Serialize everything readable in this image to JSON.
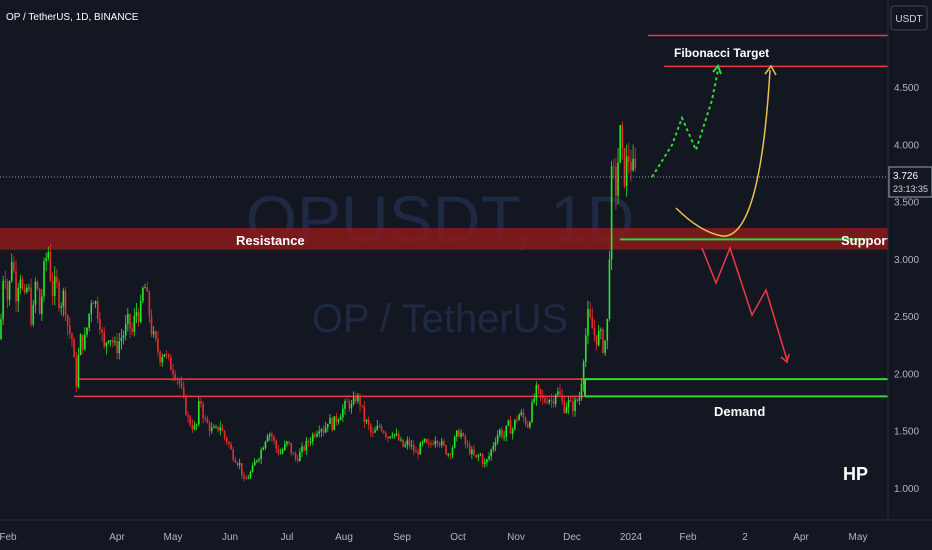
{
  "header": {
    "symbol_info": "OP / TetherUS, 1D, BINANCE"
  },
  "currency_button": {
    "label": "USDT"
  },
  "watermark": {
    "ticker": "OPUSDT, 1D",
    "pair": "OP / TetherUS"
  },
  "price_badge": {
    "price": "3.726",
    "countdown": "23:13:35"
  },
  "annotations": {
    "resistance": "Resistance",
    "support": "Support",
    "demand": "Demand",
    "fibonacci": "Fibonacci Target",
    "author": "HP"
  },
  "colors": {
    "background": "#131722",
    "up": "#26a69a",
    "down": "#ef5350",
    "bull_candle": "#27e927",
    "bear_candle": "#e82d2d",
    "red_line": "#f23645",
    "green_line": "#33d933",
    "zone": "#8b1a1a",
    "projection_green": "#33d933",
    "projection_red": "#f23645",
    "curve": "#e8c34a",
    "axis_text": "#b2b5be"
  },
  "chart_data": {
    "type": "candlestick",
    "title": "OP / TetherUS, 1D, BINANCE",
    "x_ticks": [
      "Feb",
      "Apr",
      "May",
      "Jun",
      "Jul",
      "Aug",
      "Sep",
      "Oct",
      "Nov",
      "Dec",
      "2024",
      "Feb",
      "2",
      "Apr",
      "May"
    ],
    "y_ticks": [
      "4.500",
      "4.000",
      "3.500",
      "3.000",
      "2.500",
      "2.000",
      "1.500",
      "1.000"
    ],
    "y_tick_values": [
      4.5,
      4.0,
      3.5,
      3.0,
      2.5,
      2.0,
      1.5,
      1.0
    ],
    "ylim": [
      0.5,
      5.2
    ],
    "last_price": 3.726,
    "price_path": [
      [
        0,
        2.3
      ],
      [
        4,
        3.0
      ],
      [
        8,
        2.6
      ],
      [
        12,
        3.05
      ],
      [
        16,
        2.7
      ],
      [
        20,
        2.9
      ],
      [
        24,
        2.6
      ],
      [
        28,
        2.8
      ],
      [
        32,
        2.4
      ],
      [
        36,
        2.85
      ],
      [
        40,
        2.5
      ],
      [
        44,
        2.9
      ],
      [
        48,
        3.1
      ],
      [
        52,
        2.7
      ],
      [
        56,
        2.8
      ],
      [
        60,
        2.6
      ],
      [
        64,
        2.7
      ],
      [
        68,
        2.4
      ],
      [
        72,
        2.3
      ],
      [
        76,
        1.9
      ],
      [
        80,
        2.3
      ],
      [
        84,
        2.25
      ],
      [
        88,
        2.45
      ],
      [
        92,
        2.7
      ],
      [
        96,
        2.6
      ],
      [
        100,
        2.45
      ],
      [
        104,
        2.2
      ],
      [
        108,
        2.35
      ],
      [
        112,
        2.3
      ],
      [
        116,
        2.2
      ],
      [
        120,
        2.3
      ],
      [
        124,
        2.35
      ],
      [
        128,
        2.45
      ],
      [
        132,
        2.35
      ],
      [
        136,
        2.55
      ],
      [
        140,
        2.5
      ],
      [
        144,
        2.8
      ],
      [
        148,
        2.6
      ],
      [
        152,
        2.35
      ],
      [
        156,
        2.25
      ],
      [
        160,
        2.15
      ],
      [
        164,
        2.2
      ],
      [
        168,
        2.1
      ],
      [
        172,
        2.05
      ],
      [
        176,
        2.0
      ],
      [
        180,
        1.9
      ],
      [
        184,
        1.75
      ],
      [
        188,
        1.6
      ],
      [
        192,
        1.55
      ],
      [
        196,
        1.5
      ],
      [
        200,
        1.8
      ],
      [
        204,
        1.6
      ],
      [
        208,
        1.55
      ],
      [
        212,
        1.5
      ],
      [
        216,
        1.5
      ],
      [
        220,
        1.55
      ],
      [
        224,
        1.45
      ],
      [
        228,
        1.4
      ],
      [
        232,
        1.3
      ],
      [
        236,
        1.25
      ],
      [
        240,
        1.2
      ],
      [
        244,
        1.05
      ],
      [
        248,
        1.1
      ],
      [
        252,
        1.15
      ],
      [
        256,
        1.25
      ],
      [
        260,
        1.3
      ],
      [
        264,
        1.4
      ],
      [
        268,
        1.5
      ],
      [
        272,
        1.45
      ],
      [
        276,
        1.35
      ],
      [
        280,
        1.3
      ],
      [
        284,
        1.35
      ],
      [
        288,
        1.4
      ],
      [
        292,
        1.3
      ],
      [
        296,
        1.25
      ],
      [
        300,
        1.3
      ],
      [
        304,
        1.35
      ],
      [
        308,
        1.4
      ],
      [
        312,
        1.45
      ],
      [
        316,
        1.5
      ],
      [
        320,
        1.55
      ],
      [
        324,
        1.5
      ],
      [
        328,
        1.6
      ],
      [
        332,
        1.55
      ],
      [
        336,
        1.6
      ],
      [
        340,
        1.65
      ],
      [
        344,
        1.7
      ],
      [
        348,
        1.75
      ],
      [
        352,
        1.7
      ],
      [
        356,
        1.8
      ],
      [
        360,
        1.75
      ],
      [
        364,
        1.6
      ],
      [
        368,
        1.55
      ],
      [
        372,
        1.45
      ],
      [
        376,
        1.5
      ],
      [
        380,
        1.55
      ],
      [
        384,
        1.5
      ],
      [
        388,
        1.45
      ],
      [
        392,
        1.5
      ],
      [
        396,
        1.45
      ],
      [
        400,
        1.4
      ],
      [
        404,
        1.35
      ],
      [
        408,
        1.4
      ],
      [
        412,
        1.35
      ],
      [
        416,
        1.3
      ],
      [
        420,
        1.35
      ],
      [
        424,
        1.4
      ],
      [
        428,
        1.35
      ],
      [
        432,
        1.4
      ],
      [
        436,
        1.45
      ],
      [
        440,
        1.4
      ],
      [
        444,
        1.35
      ],
      [
        448,
        1.3
      ],
      [
        452,
        1.35
      ],
      [
        456,
        1.45
      ],
      [
        460,
        1.5
      ],
      [
        464,
        1.4
      ],
      [
        468,
        1.35
      ],
      [
        472,
        1.3
      ],
      [
        476,
        1.25
      ],
      [
        480,
        1.3
      ],
      [
        484,
        1.2
      ],
      [
        488,
        1.25
      ],
      [
        492,
        1.35
      ],
      [
        496,
        1.45
      ],
      [
        500,
        1.5
      ],
      [
        504,
        1.45
      ],
      [
        508,
        1.55
      ],
      [
        512,
        1.5
      ],
      [
        516,
        1.6
      ],
      [
        520,
        1.65
      ],
      [
        524,
        1.6
      ],
      [
        528,
        1.55
      ],
      [
        532,
        1.7
      ],
      [
        536,
        1.85
      ],
      [
        540,
        1.8
      ],
      [
        544,
        1.75
      ],
      [
        548,
        1.8
      ],
      [
        552,
        1.75
      ],
      [
        556,
        1.85
      ],
      [
        560,
        1.8
      ],
      [
        564,
        1.7
      ],
      [
        568,
        1.75
      ],
      [
        572,
        1.7
      ],
      [
        576,
        1.75
      ],
      [
        580,
        1.8
      ],
      [
        584,
        2.2
      ],
      [
        588,
        2.5
      ],
      [
        592,
        2.4
      ],
      [
        596,
        2.3
      ],
      [
        600,
        2.35
      ],
      [
        604,
        2.2
      ],
      [
        608,
        2.5
      ],
      [
        610,
        3.3
      ],
      [
        612,
        3.8
      ],
      [
        616,
        3.6
      ],
      [
        620,
        4.1
      ],
      [
        624,
        3.7
      ],
      [
        628,
        3.9
      ],
      [
        632,
        3.8
      ],
      [
        636,
        3.72
      ]
    ],
    "levels": {
      "resistance_zone": [
        3.08,
        3.27
      ],
      "support": 3.17,
      "demand_upper": 1.95,
      "demand_lower": 1.8,
      "fibonacci_target": 4.68,
      "top_line": 4.95
    }
  }
}
